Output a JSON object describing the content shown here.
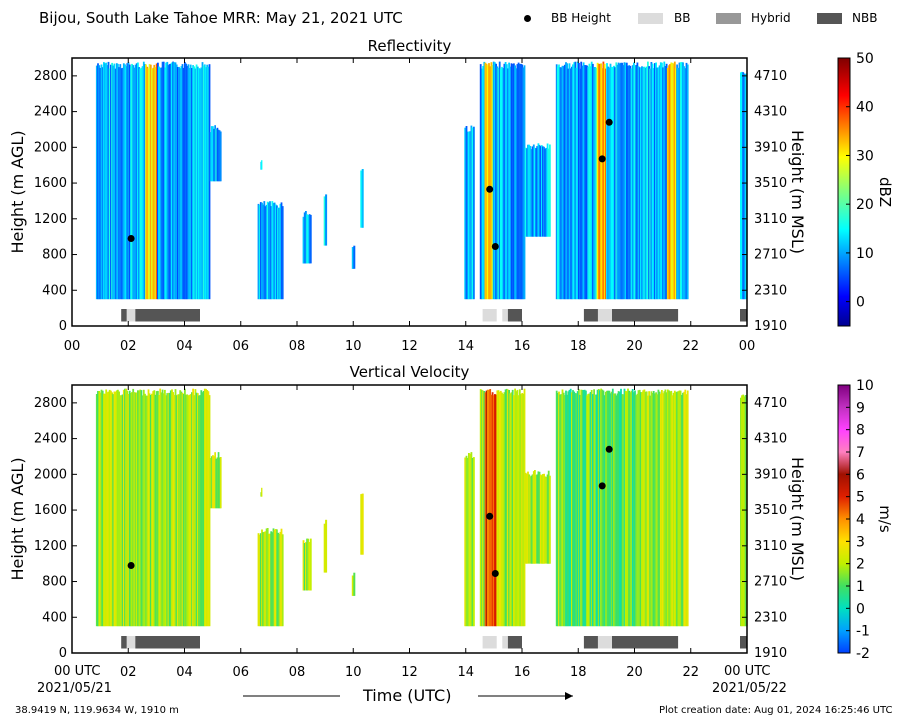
{
  "figure": {
    "title": "Bijou, South Lake Tahoe MRR:  May 21, 2021 UTC",
    "legend": [
      {
        "label": "BB Height",
        "kind": "dot",
        "color": "#000000"
      },
      {
        "label": "BB",
        "kind": "box",
        "color": "#dcdcdc"
      },
      {
        "label": "Hybrid",
        "kind": "box",
        "color": "#989898"
      },
      {
        "label": "NBB",
        "kind": "box",
        "color": "#555555"
      }
    ],
    "xlabel": "Time (UTC)",
    "x_start_label": "00 UTC",
    "x_start_date": "2021/05/21",
    "x_end_label": "00 UTC",
    "x_end_date": "2021/05/22",
    "location": "38.9419 N, 119.9634 W, 1910 m",
    "creation_date": "Plot creation date: Aug 01, 2024 16:25:46 UTC"
  },
  "chart_data": [
    {
      "type": "heatmap",
      "title": "Reflectivity",
      "ylabel": "Height (m AGL)",
      "ylabel_right": "Height (m MSL)",
      "xlim": [
        0,
        24
      ],
      "ylim": [
        0,
        3000
      ],
      "x_ticks": [
        "00",
        "02",
        "04",
        "06",
        "08",
        "10",
        "12",
        "14",
        "16",
        "18",
        "20",
        "22",
        "00"
      ],
      "y_ticks": [
        0,
        400,
        800,
        1200,
        1600,
        2000,
        2400,
        2800
      ],
      "y_ticks_right": [
        "1910",
        "2310",
        "2710",
        "3110",
        "3510",
        "3910",
        "4310",
        "4710"
      ],
      "colorbar": {
        "label": "dBZ",
        "min": -5,
        "max": 50,
        "ticks": [
          0,
          10,
          20,
          30,
          40,
          50
        ],
        "colormap": "jet"
      },
      "bb_height_points": [
        {
          "t": 2.1,
          "h": 980
        },
        {
          "t": 14.85,
          "h": 1530
        },
        {
          "t": 15.05,
          "h": 890
        },
        {
          "t": 18.85,
          "h": 1870
        },
        {
          "t": 19.1,
          "h": 2280
        }
      ],
      "bb_type_segments": [
        {
          "start": 1.75,
          "end": 1.95,
          "type": "NBB"
        },
        {
          "start": 1.95,
          "end": 2.25,
          "type": "BB"
        },
        {
          "start": 2.25,
          "end": 4.55,
          "type": "NBB"
        },
        {
          "start": 14.6,
          "end": 15.1,
          "type": "BB"
        },
        {
          "start": 15.3,
          "end": 15.5,
          "type": "BB"
        },
        {
          "start": 15.5,
          "end": 16.0,
          "type": "NBB"
        },
        {
          "start": 18.2,
          "end": 18.7,
          "type": "NBB"
        },
        {
          "start": 18.7,
          "end": 19.2,
          "type": "BB"
        },
        {
          "start": 19.2,
          "end": 21.55,
          "type": "NBB"
        },
        {
          "start": 23.75,
          "end": 24.0,
          "type": "NBB"
        }
      ]
    },
    {
      "type": "heatmap",
      "title": "Vertical Velocity",
      "ylabel": "Height (m AGL)",
      "ylabel_right": "Height (m MSL)",
      "xlim": [
        0,
        24
      ],
      "ylim": [
        0,
        3000
      ],
      "x_ticks": [
        "02",
        "04",
        "06",
        "08",
        "10",
        "12",
        "14",
        "16",
        "18",
        "20",
        "22"
      ],
      "y_ticks": [
        0,
        400,
        800,
        1200,
        1600,
        2000,
        2400,
        2800
      ],
      "y_ticks_right": [
        "1910",
        "2310",
        "2710",
        "3110",
        "3510",
        "3910",
        "4310",
        "4710"
      ],
      "colorbar": {
        "label": "m/s",
        "min": -2,
        "max": 10,
        "ticks": [
          -2,
          -1,
          0,
          1,
          2,
          3,
          4,
          5,
          6,
          7,
          8,
          9,
          10
        ],
        "colormap": "velocity"
      },
      "bb_height_points": [
        {
          "t": 2.1,
          "h": 980
        },
        {
          "t": 14.85,
          "h": 1530
        },
        {
          "t": 15.05,
          "h": 890
        },
        {
          "t": 18.85,
          "h": 1870
        },
        {
          "t": 19.1,
          "h": 2280
        }
      ],
      "bb_type_segments": [
        {
          "start": 1.75,
          "end": 1.95,
          "type": "NBB"
        },
        {
          "start": 1.95,
          "end": 2.25,
          "type": "BB"
        },
        {
          "start": 2.25,
          "end": 4.55,
          "type": "NBB"
        },
        {
          "start": 14.6,
          "end": 15.1,
          "type": "BB"
        },
        {
          "start": 15.3,
          "end": 15.5,
          "type": "BB"
        },
        {
          "start": 15.5,
          "end": 16.0,
          "type": "NBB"
        },
        {
          "start": 18.2,
          "end": 18.7,
          "type": "NBB"
        },
        {
          "start": 18.7,
          "end": 19.2,
          "type": "BB"
        },
        {
          "start": 19.2,
          "end": 21.55,
          "type": "NBB"
        },
        {
          "start": 23.75,
          "end": 24.0,
          "type": "NBB"
        }
      ]
    }
  ]
}
